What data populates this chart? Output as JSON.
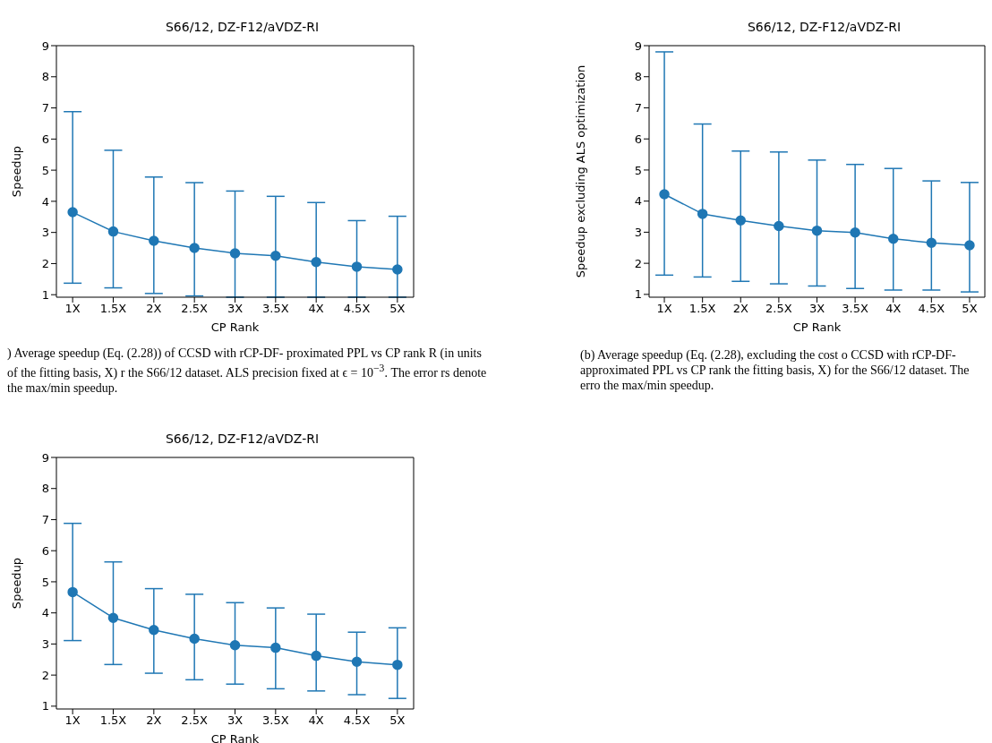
{
  "chart_data": [
    {
      "type": "line",
      "title": "S66/12, DZ-F12/aVDZ-RI",
      "xlabel": "CP Rank",
      "ylabel": "Speedup",
      "categories": [
        "1X",
        "1.5X",
        "2X",
        "2.5X",
        "3X",
        "3.5X",
        "4X",
        "4.5X",
        "5X"
      ],
      "ylim": [
        0.92,
        9
      ],
      "yticks": [
        1,
        2,
        3,
        4,
        5,
        6,
        7,
        8,
        9
      ],
      "marker": "circle",
      "series": [
        {
          "color": "#1f77b4",
          "values": [
            3.65,
            3.03,
            2.73,
            2.5,
            2.33,
            2.25,
            2.05,
            1.9,
            1.81
          ],
          "errors": [
            [
              1.37,
              6.88
            ],
            [
              1.22,
              5.64
            ],
            [
              1.04,
              4.78
            ],
            [
              0.96,
              4.6
            ],
            [
              0.92,
              4.33
            ],
            [
              0.92,
              4.16
            ],
            [
              0.92,
              3.96
            ],
            [
              0.92,
              3.38
            ],
            [
              0.92,
              3.52
            ]
          ]
        }
      ],
      "annotations": [
        ") Average speedup (Eq. (2.28)) of CCSD with rCP-DF- proximated PPL vs CP rank R (in units of the fitting basis, X) r the S66/12 dataset. ALS precision fixed at ϵ = 10$^{−3}$. The error rs denote the max/min speedup."
      ]
    },
    {
      "type": "line",
      "title": "S66/12, DZ-F12/aVDZ-RI",
      "xlabel": "CP Rank",
      "ylabel": "Speedup excluding ALS optimization",
      "categories": [
        "1X",
        "1.5X",
        "2X",
        "2.5X",
        "3X",
        "3.5X",
        "4X",
        "4.5X",
        "5X"
      ],
      "ylim": [
        0.91,
        9
      ],
      "yticks": [
        1,
        2,
        3,
        4,
        5,
        6,
        7,
        8,
        9
      ],
      "marker": "circle",
      "series": [
        {
          "color": "#1f77b4",
          "values": [
            4.22,
            3.59,
            3.38,
            3.2,
            3.05,
            2.99,
            2.79,
            2.66,
            2.58
          ],
          "errors": [
            [
              1.62,
              8.8
            ],
            [
              1.56,
              6.48
            ],
            [
              1.42,
              5.61
            ],
            [
              1.34,
              5.58
            ],
            [
              1.27,
              5.32
            ],
            [
              1.19,
              5.18
            ],
            [
              1.14,
              5.05
            ],
            [
              1.14,
              4.65
            ],
            [
              1.08,
              4.6
            ]
          ]
        }
      ],
      "annotations": [
        "(b) Average speedup (Eq. (2.28), excluding the cost o CCSD with rCP-DF-approximated PPL vs CP rank the fitting basis, X) for the S66/12 dataset. The erro the max/min speedup."
      ]
    },
    {
      "type": "line",
      "title": "S66/12, DZ-F12/aVDZ-RI",
      "xlabel": "CP Rank",
      "ylabel": "Speedup",
      "categories": [
        "1X",
        "1.5X",
        "2X",
        "2.5X",
        "3X",
        "3.5X",
        "4X",
        "4.5X",
        "5X"
      ],
      "ylim": [
        0.91,
        9
      ],
      "yticks": [
        1,
        2,
        3,
        4,
        5,
        6,
        7,
        8,
        9
      ],
      "marker": "circle",
      "series": [
        {
          "color": "#1f77b4",
          "values": [
            4.67,
            3.84,
            3.45,
            3.17,
            2.96,
            2.88,
            2.62,
            2.43,
            2.33
          ],
          "errors": [
            [
              3.11,
              6.88
            ],
            [
              2.34,
              5.64
            ],
            [
              2.06,
              4.78
            ],
            [
              1.85,
              4.6
            ],
            [
              1.71,
              4.33
            ],
            [
              1.56,
              4.16
            ],
            [
              1.49,
              3.96
            ],
            [
              1.37,
              3.38
            ],
            [
              1.25,
              3.52
            ]
          ]
        }
      ]
    }
  ]
}
